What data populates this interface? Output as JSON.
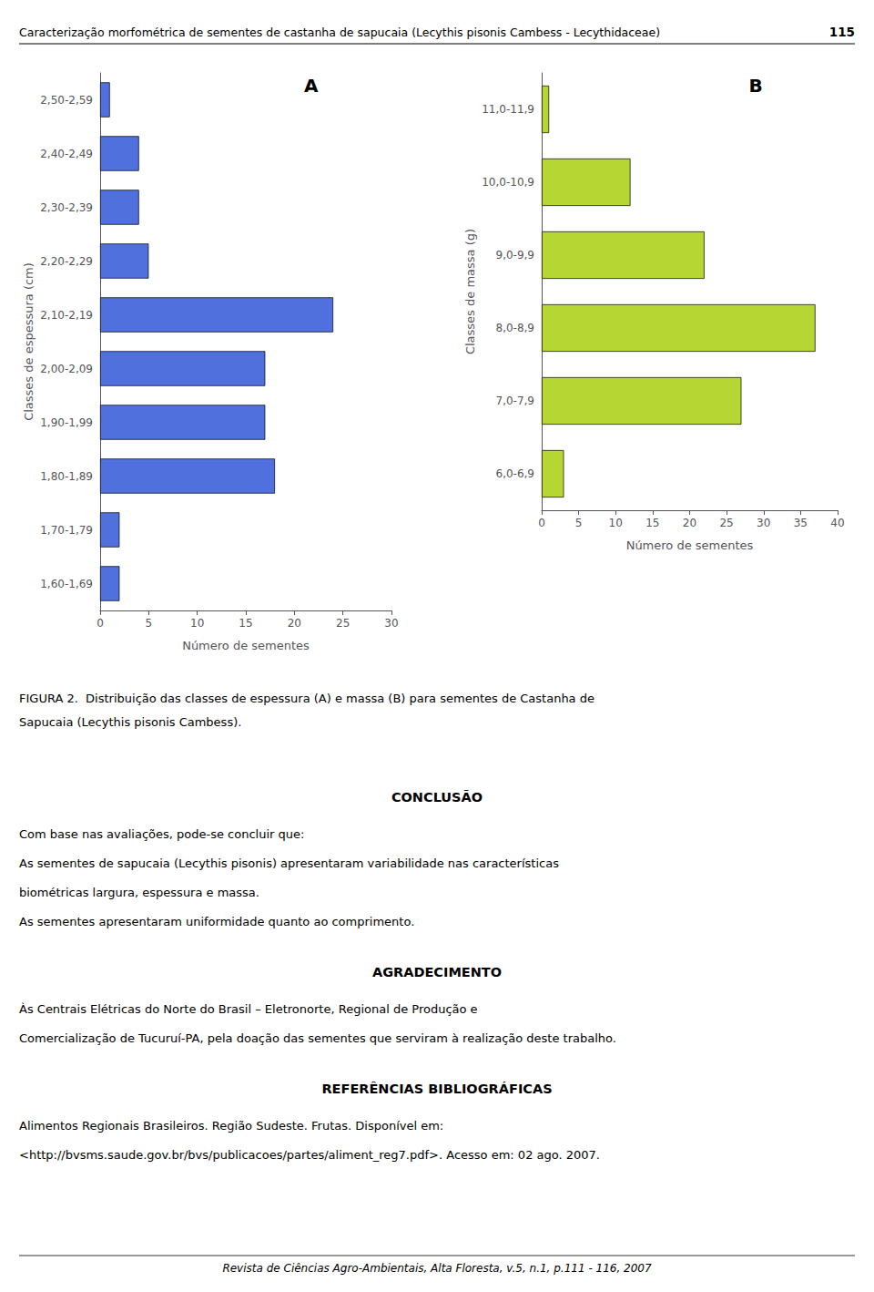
{
  "chart_data": [
    {
      "type": "bar",
      "orientation": "horizontal",
      "categories": [
        "2,50-2,59",
        "2,40-2,49",
        "2,30-2,39",
        "2,20-2,29",
        "2,10-2,19",
        "2,00-2,09",
        "1,90-1,99",
        "1,80-1,89",
        "1,70-1,79",
        "1,60-1,69"
      ],
      "values": [
        1,
        4,
        4,
        5,
        24,
        17,
        17,
        18,
        2,
        2
      ],
      "xlabel": "Número de sementes",
      "ylabel": "Classes de espessura (cm)",
      "xlim": [
        0,
        30
      ],
      "xticks": [
        0,
        5,
        10,
        15,
        20,
        25,
        30
      ],
      "annotations": [
        "A"
      ],
      "grid": false
    },
    {
      "type": "bar",
      "orientation": "horizontal",
      "categories": [
        "11,0-11,9",
        "10,0-10,9",
        "9,0-9,9",
        "8,0-8,9",
        "7,0-7,9",
        "6,0-6,9"
      ],
      "values": [
        1,
        12,
        22,
        37,
        27,
        3
      ],
      "xlabel": "Número de sementes",
      "ylabel": "Classes de massa (g)",
      "xlim": [
        0,
        40
      ],
      "xticks": [
        0,
        5,
        10,
        15,
        20,
        25,
        30,
        35,
        40
      ],
      "annotations": [
        "B"
      ],
      "grid": false
    }
  ],
  "header": "Caracterização morfométrica de sementes de castanha de sapucaia (Lecythis pisonis Cambess - Lecythidaceae)",
  "page_number": "115",
  "caption": [
    "FIGURA 2.  Distribuição das classes de espessura (A) e massa (B) para sementes de Castanha de",
    "Sapucaia (Lecythis pisonis Cambess)."
  ],
  "sections": [
    {
      "heading": "CONCLUSÃO",
      "lines": [
        "Com base nas avaliações, pode-se concluir que:",
        "As sementes de sapucaia (Lecythis pisonis) apresentaram variabilidade nas características",
        "biométricas largura, espessura e massa.",
        "As sementes apresentaram uniformidade quanto ao comprimento."
      ]
    },
    {
      "heading": "AGRADECIMENTO",
      "lines": [
        "Às Centrais Elétricas do Norte do Brasil – Eletronorte, Regional de Produção e",
        "Comercialização de Tucuruí-PA, pela doação das sementes que serviram à realização deste trabalho."
      ]
    },
    {
      "heading": "REFERÊNCIAS BIBLIOGRÁFICAS",
      "lines": [
        "Alimentos Regionais Brasileiros. Região Sudeste. Frutas. Disponível em:",
        "<http://bvsms.saude.gov.br/bvs/publicacoes/partes/aliment_reg7.pdf>. Acesso em: 02 ago. 2007."
      ]
    }
  ],
  "footer": "Revista de Ciências Agro-Ambientais, Alta Floresta, v.5, n.1, p.111 - 116, 2007"
}
